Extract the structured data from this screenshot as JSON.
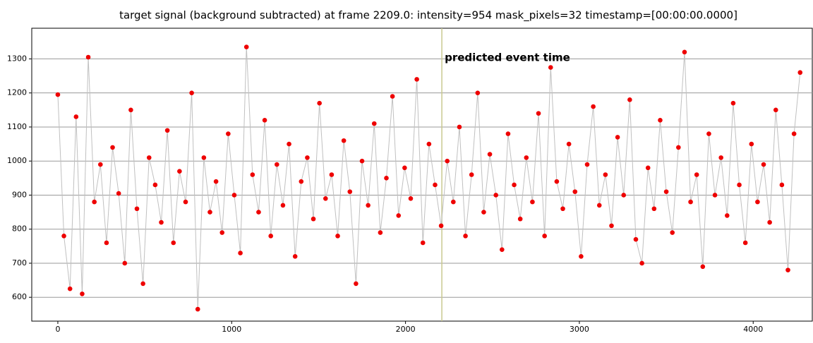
{
  "chart_data": {
    "type": "scatter",
    "title": "target signal (background subtracted) at frame 2209.0: intensity=954 mask_pixels=32 timestamp=[00:00:00.0000]",
    "annotation": "predicted event time",
    "event_x": 2209,
    "event_color": "#c8c890",
    "line_color": "#c0c0c0",
    "color": "#ee0000",
    "grid": true,
    "xlim": [
      -150,
      4340
    ],
    "ylim": [
      530,
      1390
    ],
    "xticks": [
      0,
      1000,
      2000,
      3000,
      4000
    ],
    "yticks": [
      600,
      700,
      800,
      900,
      1000,
      1100,
      1200,
      1300
    ],
    "x": [
      0,
      35,
      70,
      105,
      140,
      175,
      210,
      245,
      280,
      315,
      350,
      385,
      420,
      455,
      490,
      525,
      560,
      595,
      630,
      665,
      700,
      735,
      770,
      805,
      840,
      875,
      910,
      945,
      980,
      1015,
      1050,
      1085,
      1120,
      1155,
      1190,
      1225,
      1260,
      1295,
      1330,
      1365,
      1400,
      1435,
      1470,
      1505,
      1540,
      1575,
      1610,
      1645,
      1680,
      1715,
      1750,
      1785,
      1820,
      1855,
      1890,
      1925,
      1960,
      1995,
      2030,
      2065,
      2100,
      2135,
      2170,
      2205,
      2240,
      2275,
      2310,
      2345,
      2380,
      2415,
      2450,
      2485,
      2520,
      2555,
      2590,
      2625,
      2660,
      2695,
      2730,
      2765,
      2800,
      2835,
      2870,
      2905,
      2940,
      2975,
      3010,
      3045,
      3080,
      3115,
      3150,
      3185,
      3220,
      3255,
      3290,
      3325,
      3360,
      3395,
      3430,
      3465,
      3500,
      3535,
      3570,
      3605,
      3640,
      3675,
      3710,
      3745,
      3780,
      3815,
      3850,
      3885,
      3920,
      3955,
      3990,
      4025,
      4060,
      4095,
      4130,
      4165,
      4200,
      4235,
      4270
    ],
    "values": [
      1195,
      780,
      625,
      1130,
      610,
      1305,
      880,
      990,
      760,
      1040,
      905,
      700,
      1150,
      860,
      640,
      1010,
      930,
      820,
      1090,
      760,
      970,
      880,
      1200,
      565,
      1010,
      850,
      940,
      790,
      1080,
      900,
      730,
      1335,
      960,
      850,
      1120,
      780,
      990,
      870,
      1050,
      720,
      940,
      1010,
      830,
      1170,
      890,
      960,
      780,
      1060,
      910,
      640,
      1000,
      870,
      1110,
      790,
      950,
      1190,
      840,
      980,
      890,
      1240,
      760,
      1050,
      930,
      810,
      1000,
      880,
      1100,
      780,
      960,
      1200,
      850,
      1020,
      900,
      740,
      1080,
      930,
      830,
      1010,
      880,
      1140,
      780,
      1275,
      940,
      860,
      1050,
      910,
      720,
      990,
      1160,
      870,
      960,
      810,
      1070,
      900,
      1180,
      770,
      700,
      980,
      860,
      1120,
      910,
      790,
      1040,
      1320,
      880,
      960,
      690,
      1080,
      900,
      1010,
      840,
      1170,
      930,
      760,
      1050,
      880,
      990,
      820,
      1150,
      930,
      680,
      1080,
      1260
    ]
  }
}
